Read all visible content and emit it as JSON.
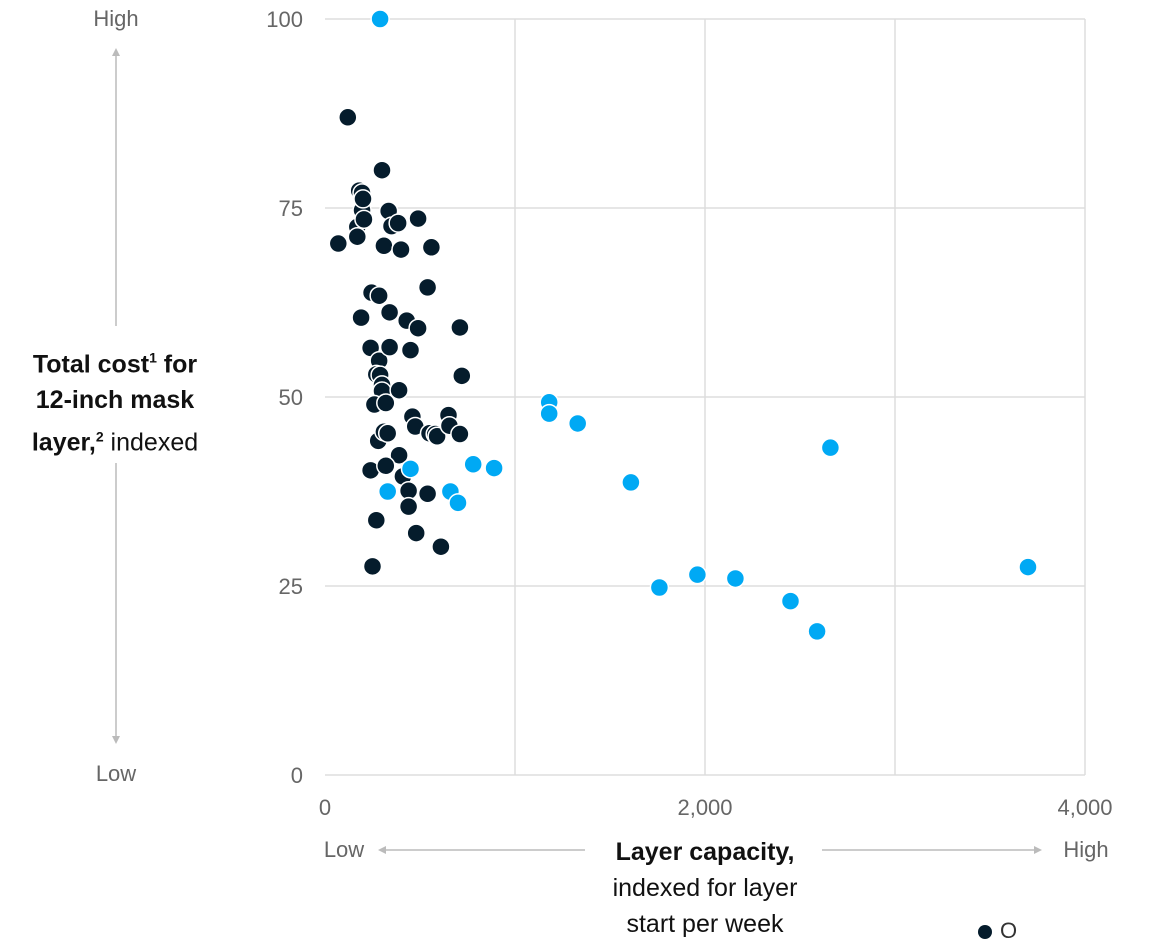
{
  "chart_data": {
    "type": "scatter",
    "title": "",
    "ylabel": {
      "line1_bold": "Total cost",
      "sup1": "1",
      "line1_rest": " for",
      "line2_bold": "12-inch mask",
      "line3_bold": "layer,",
      "sup2": "2",
      "line3_rest": " indexed"
    },
    "xlabel": {
      "bold": "Layer capacity,",
      "line2": "indexed for layer",
      "line3": "start per week"
    },
    "y_axis": {
      "low": "Low",
      "high": "High",
      "ticks": [
        "100",
        "75",
        "50",
        "25",
        "0"
      ],
      "tick_values": [
        100,
        75,
        50,
        25,
        0
      ]
    },
    "x_axis": {
      "low": "Low",
      "high": "High",
      "ticks": [
        "0",
        "2,000",
        "4,000"
      ],
      "tick_values": [
        0,
        2000,
        4000
      ]
    },
    "xlim": [
      0,
      4000
    ],
    "ylim": [
      0,
      100
    ],
    "grid": true,
    "colors": {
      "series_dark": "#051c2c",
      "series_light": "#00a9f4",
      "grid": "#dddddd"
    },
    "legend": {
      "visible_text": "O",
      "placement": "bottom-right"
    },
    "series": [
      {
        "color": "#051c2c",
        "points": [
          [
            70,
            70.3
          ],
          [
            120,
            87
          ],
          [
            170,
            72.5
          ],
          [
            170,
            71.2
          ],
          [
            180,
            77.3
          ],
          [
            195,
            77.0
          ],
          [
            195,
            74.7
          ],
          [
            200,
            76.2
          ],
          [
            205,
            73.5
          ],
          [
            300,
            80
          ],
          [
            310,
            70
          ],
          [
            335,
            74.6
          ],
          [
            350,
            72.6
          ],
          [
            385,
            73.0
          ],
          [
            400,
            69.5
          ],
          [
            490,
            73.6
          ],
          [
            560,
            69.8
          ],
          [
            190,
            60.5
          ],
          [
            245,
            63.8
          ],
          [
            285,
            63.4
          ],
          [
            340,
            61.2
          ],
          [
            430,
            60.1
          ],
          [
            490,
            59.1
          ],
          [
            540,
            64.5
          ],
          [
            710,
            59.2
          ],
          [
            240,
            56.5
          ],
          [
            285,
            54.8
          ],
          [
            340,
            56.6
          ],
          [
            450,
            56.2
          ],
          [
            720,
            52.8
          ],
          [
            270,
            53.0
          ],
          [
            290,
            52.9
          ],
          [
            300,
            51.6
          ],
          [
            300,
            50.8
          ],
          [
            390,
            50.9
          ],
          [
            260,
            49.0
          ],
          [
            320,
            49.2
          ],
          [
            460,
            47.4
          ],
          [
            475,
            46.1
          ],
          [
            550,
            45.2
          ],
          [
            580,
            45.1
          ],
          [
            590,
            44.8
          ],
          [
            650,
            47.6
          ],
          [
            655,
            46.2
          ],
          [
            710,
            45.1
          ],
          [
            280,
            44.2
          ],
          [
            310,
            45.4
          ],
          [
            330,
            45.2
          ],
          [
            390,
            42.3
          ],
          [
            240,
            40.3
          ],
          [
            320,
            40.9
          ],
          [
            410,
            39.5
          ],
          [
            440,
            37.6
          ],
          [
            540,
            37.2
          ],
          [
            440,
            35.5
          ],
          [
            270,
            33.7
          ],
          [
            480,
            32.0
          ],
          [
            610,
            30.2
          ],
          [
            250,
            27.6
          ]
        ]
      },
      {
        "color": "#00a9f4",
        "points": [
          [
            290,
            100
          ],
          [
            330,
            37.5
          ],
          [
            450,
            40.5
          ],
          [
            660,
            37.5
          ],
          [
            700,
            36.0
          ],
          [
            780,
            41.1
          ],
          [
            890,
            40.6
          ],
          [
            1180,
            49.3
          ],
          [
            1180,
            47.8
          ],
          [
            1330,
            46.5
          ],
          [
            1610,
            38.7
          ],
          [
            1760,
            24.8
          ],
          [
            1960,
            26.5
          ],
          [
            2160,
            26.0
          ],
          [
            2450,
            23.0
          ],
          [
            2590,
            19.0
          ],
          [
            2660,
            43.3
          ],
          [
            3700,
            27.5
          ]
        ]
      }
    ]
  }
}
